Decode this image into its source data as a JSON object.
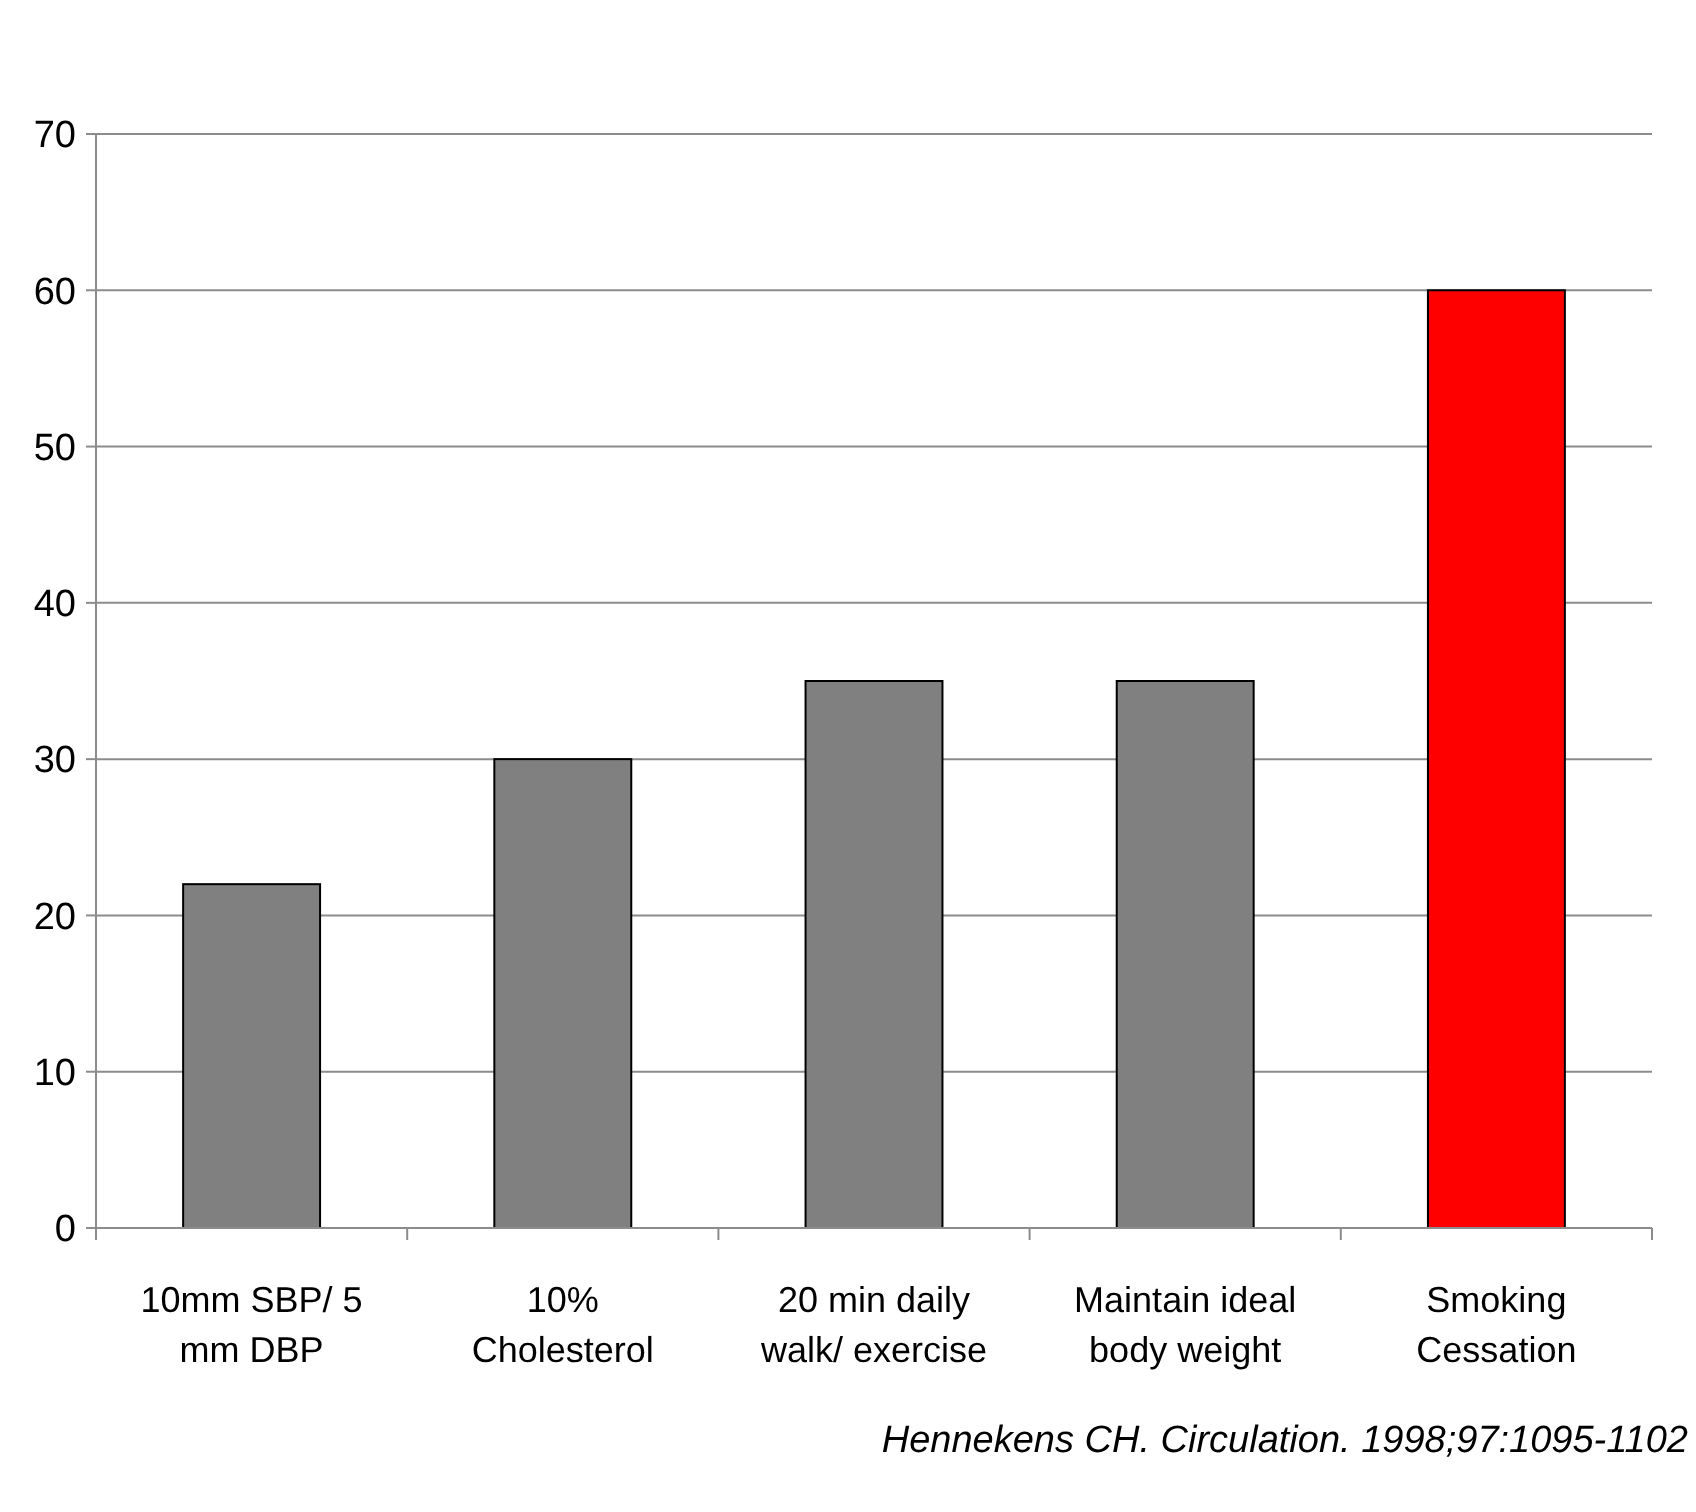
{
  "chart_data": {
    "type": "bar",
    "categories": [
      "10mm SBP/ 5 mm DBP",
      "10% Cholesterol",
      "20 min daily walk/ exercise",
      "Maintain ideal body weight",
      "Smoking Cessation"
    ],
    "values": [
      22,
      30,
      35,
      35,
      60
    ],
    "colors": [
      "#808080",
      "#808080",
      "#808080",
      "#808080",
      "#ff0000"
    ],
    "ylim": [
      0,
      70
    ],
    "yticks": [
      0,
      10,
      20,
      30,
      40,
      50,
      60,
      70
    ],
    "grid": "y",
    "annotations": [
      "Hennekens CH. Circulation. 1998;97:1095-1102"
    ]
  }
}
